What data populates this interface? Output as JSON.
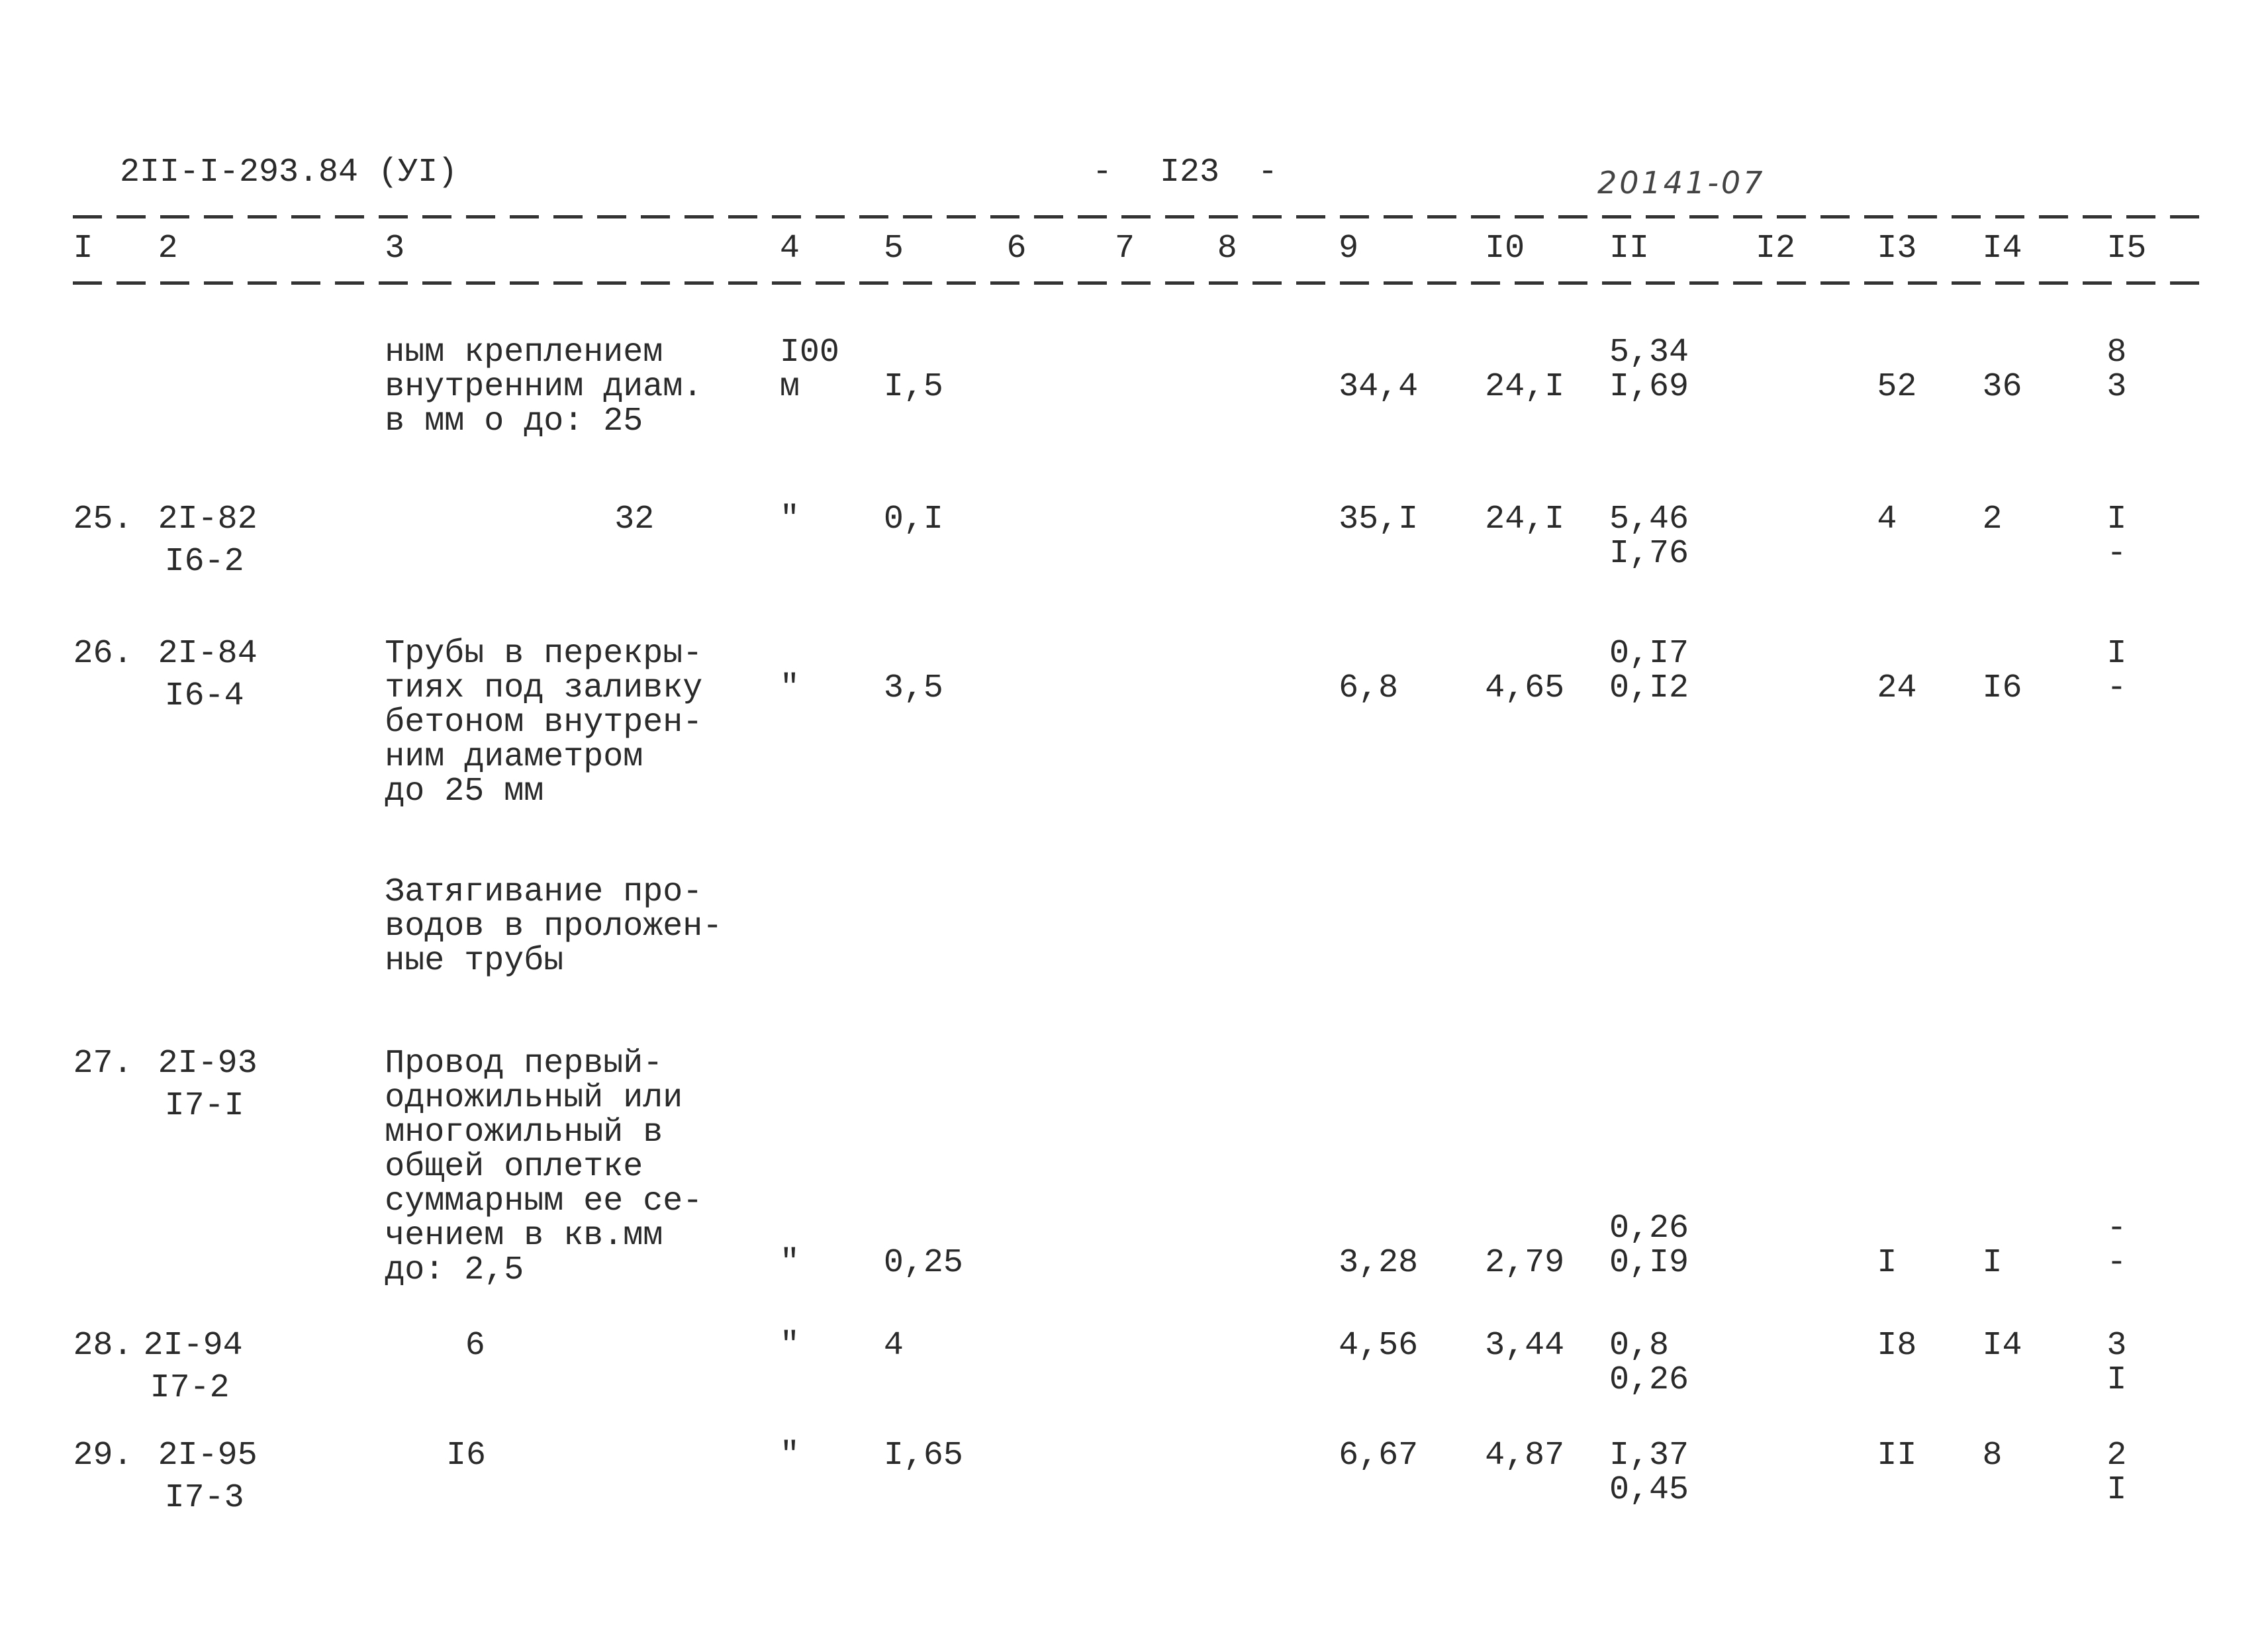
{
  "header": {
    "code": "2II-I-293.84 (УI)",
    "page": "I23",
    "stamp": "20141-07"
  },
  "table": {
    "columns": [
      "I",
      "2",
      "3",
      "4",
      "5",
      "6",
      "7",
      "8",
      "9",
      "I0",
      "II",
      "I2",
      "I3",
      "I4",
      "I5"
    ],
    "rows": [
      {
        "desc": [
          "ным креплением",
          "внутренним диам.",
          "в мм о до: 25"
        ],
        "unit": [
          "I00",
          "м"
        ],
        "c5": "I,5",
        "c9": "34,4",
        "c10": "24,I",
        "c11": [
          "5,34",
          "I,69"
        ],
        "c13": "52",
        "c14": "36",
        "c15": [
          "8",
          "3"
        ]
      },
      {
        "num": "25.",
        "code": [
          "2I-82",
          "I6-2"
        ],
        "desc": "32",
        "unit": "\"",
        "c5": "0,I",
        "c9": "35,I",
        "c10": "24,I",
        "c11": [
          "5,46",
          "I,76"
        ],
        "c13": "4",
        "c14": "2",
        "c15": [
          "I",
          "-"
        ]
      },
      {
        "num": "26.",
        "code": [
          "2I-84",
          "I6-4"
        ],
        "desc": [
          "Трубы в перекры-",
          "тиях под заливку",
          "бетоном внутрен-",
          "ним диаметром",
          "до 25 мм"
        ],
        "unit": "\"",
        "c5": "3,5",
        "c9": "6,8",
        "c10": "4,65",
        "c11": [
          "0,I7",
          "0,I2"
        ],
        "c13": "24",
        "c14": "I6",
        "c15": [
          "I",
          "-"
        ]
      },
      {
        "desc": [
          "Затягивание про-",
          "водов в проложен-",
          "ные трубы"
        ]
      },
      {
        "num": "27.",
        "code": [
          "2I-93",
          "I7-I"
        ],
        "desc": [
          "Провод первый-",
          "одножильный или",
          "многожильный в",
          "общей оплетке",
          "суммарным ее се-",
          "чением в кв.мм",
          "до: 2,5"
        ],
        "unit": "\"",
        "c5": "0,25",
        "c9": "3,28",
        "c10": "2,79",
        "c11": [
          "0,26",
          "0,I9"
        ],
        "c13": "I",
        "c14": "I",
        "c15": [
          "-",
          "-"
        ]
      },
      {
        "num": "28.",
        "code": [
          "2I-94",
          "I7-2"
        ],
        "desc": "6",
        "unit": "\"",
        "c5": "4",
        "c9": "4,56",
        "c10": "3,44",
        "c11": [
          "0,8",
          "0,26"
        ],
        "c13": "I8",
        "c14": "I4",
        "c15": [
          "3",
          "I"
        ]
      },
      {
        "num": "29.",
        "code": [
          "2I-95",
          "I7-3"
        ],
        "desc": "I6",
        "unit": "\"",
        "c5": "I,65",
        "c9": "6,67",
        "c10": "4,87",
        "c11": [
          "I,37",
          "0,45"
        ],
        "c13": "II",
        "c14": "8",
        "c15": [
          "2",
          "I"
        ]
      }
    ]
  }
}
